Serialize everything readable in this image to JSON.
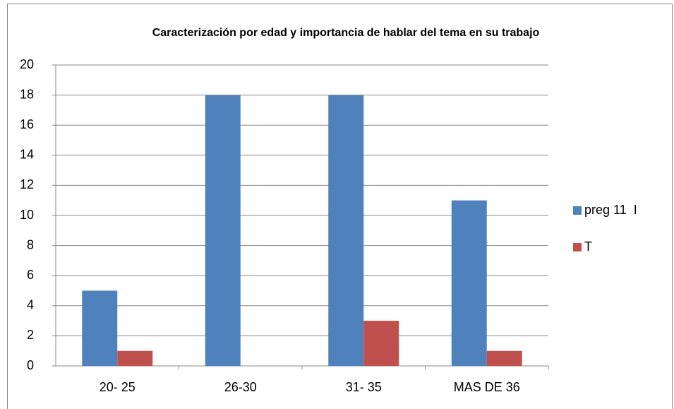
{
  "chart_data": {
    "type": "bar",
    "title": "Caracterización por edad y importancia de hablar del tema en su trabajo",
    "categories": [
      "20- 25",
      "26-30",
      "31- 35",
      "MAS DE 36"
    ],
    "series": [
      {
        "name": "preg 11  I",
        "color": "#4f81bd",
        "values": [
          5,
          18,
          18,
          11
        ]
      },
      {
        "name": "T",
        "color": "#c0504d",
        "values": [
          1,
          0,
          3,
          1
        ]
      }
    ],
    "ylim": [
      0,
      20
    ],
    "yticks": [
      0,
      2,
      4,
      6,
      8,
      10,
      12,
      14,
      16,
      18,
      20
    ],
    "grid": true,
    "legend": "right"
  }
}
